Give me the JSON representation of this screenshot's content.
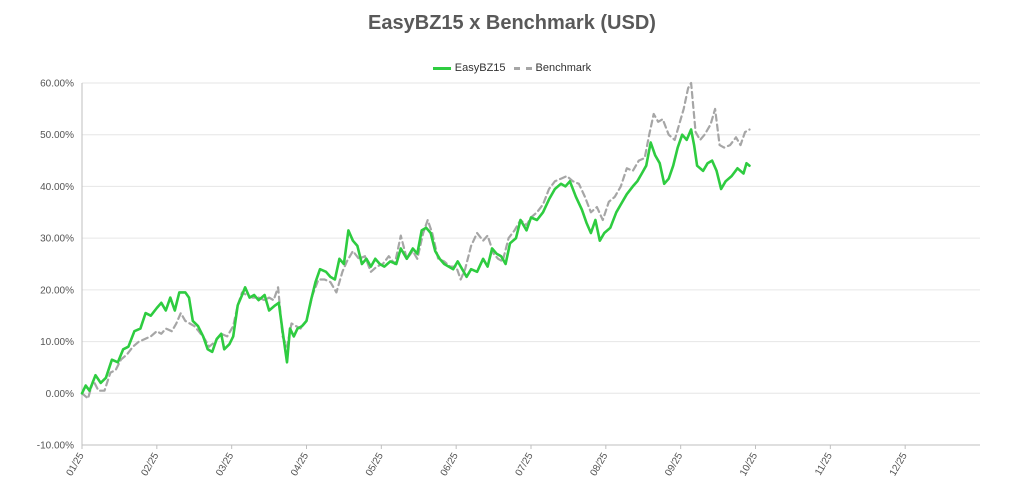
{
  "chart_data": {
    "type": "line",
    "title": "EasyBZ15 x Benchmark (USD)",
    "xlabel": "",
    "ylabel": "",
    "ylim": [
      -10,
      60
    ],
    "yticks": [
      -10,
      0,
      10,
      20,
      30,
      40,
      50,
      60
    ],
    "ytick_labels": [
      "-10.00%",
      "0.00%",
      "10.00%",
      "20.00%",
      "30.00%",
      "40.00%",
      "50.00%",
      "60.00%"
    ],
    "xlim": [
      0,
      12
    ],
    "xtick_positions": [
      0,
      1,
      2,
      3,
      4,
      5,
      6,
      7,
      8,
      9,
      10,
      11
    ],
    "xtick_labels": [
      "01/25",
      "02/25",
      "03/25",
      "04/25",
      "05/25",
      "06/25",
      "07/25",
      "08/25",
      "09/25",
      "10/25",
      "11/25",
      "12/25"
    ],
    "grid": "horizontal",
    "legend_position": "top-center",
    "series": [
      {
        "name": "EasyBZ15",
        "color": "#2ecc40",
        "style": "solid",
        "points": [
          [
            0.0,
            0.0
          ],
          [
            0.05,
            1.5
          ],
          [
            0.1,
            0.5
          ],
          [
            0.18,
            3.5
          ],
          [
            0.25,
            2.0
          ],
          [
            0.32,
            3.0
          ],
          [
            0.4,
            6.5
          ],
          [
            0.48,
            6.0
          ],
          [
            0.55,
            8.5
          ],
          [
            0.62,
            9.0
          ],
          [
            0.7,
            12.0
          ],
          [
            0.78,
            12.5
          ],
          [
            0.85,
            15.5
          ],
          [
            0.92,
            15.0
          ],
          [
            1.0,
            16.5
          ],
          [
            1.06,
            17.5
          ],
          [
            1.12,
            16.0
          ],
          [
            1.18,
            18.5
          ],
          [
            1.24,
            16.0
          ],
          [
            1.3,
            19.5
          ],
          [
            1.38,
            19.5
          ],
          [
            1.43,
            18.5
          ],
          [
            1.48,
            14.0
          ],
          [
            1.55,
            13.0
          ],
          [
            1.62,
            11.0
          ],
          [
            1.68,
            8.5
          ],
          [
            1.74,
            8.0
          ],
          [
            1.8,
            10.5
          ],
          [
            1.86,
            11.5
          ],
          [
            1.9,
            8.5
          ],
          [
            1.97,
            9.5
          ],
          [
            2.02,
            11.0
          ],
          [
            2.08,
            17.0
          ],
          [
            2.14,
            19.0
          ],
          [
            2.18,
            20.5
          ],
          [
            2.24,
            18.5
          ],
          [
            2.3,
            19.0
          ],
          [
            2.36,
            18.0
          ],
          [
            2.44,
            19.0
          ],
          [
            2.5,
            16.0
          ],
          [
            2.58,
            17.0
          ],
          [
            2.63,
            17.5
          ],
          [
            2.68,
            12.0
          ],
          [
            2.74,
            6.0
          ],
          [
            2.78,
            12.5
          ],
          [
            2.83,
            11.0
          ],
          [
            2.88,
            12.5
          ],
          [
            2.94,
            13.0
          ],
          [
            3.0,
            14.0
          ],
          [
            3.06,
            18.0
          ],
          [
            3.12,
            21.5
          ],
          [
            3.18,
            24.0
          ],
          [
            3.26,
            23.5
          ],
          [
            3.32,
            22.5
          ],
          [
            3.38,
            22.0
          ],
          [
            3.44,
            26.0
          ],
          [
            3.5,
            25.0
          ],
          [
            3.56,
            31.5
          ],
          [
            3.62,
            29.5
          ],
          [
            3.68,
            28.5
          ],
          [
            3.74,
            25.0
          ],
          [
            3.8,
            26.0
          ],
          [
            3.86,
            24.5
          ],
          [
            3.92,
            26.0
          ],
          [
            3.98,
            25.0
          ],
          [
            4.04,
            24.5
          ],
          [
            4.12,
            25.5
          ],
          [
            4.2,
            25.0
          ],
          [
            4.26,
            28.0
          ],
          [
            4.34,
            26.0
          ],
          [
            4.42,
            28.0
          ],
          [
            4.48,
            27.0
          ],
          [
            4.54,
            31.5
          ],
          [
            4.6,
            32.0
          ],
          [
            4.66,
            31.0
          ],
          [
            4.72,
            27.5
          ],
          [
            4.78,
            26.0
          ],
          [
            4.84,
            25.0
          ],
          [
            4.9,
            24.5
          ],
          [
            4.96,
            24.0
          ],
          [
            5.02,
            25.5
          ],
          [
            5.08,
            24.0
          ],
          [
            5.14,
            22.5
          ],
          [
            5.2,
            24.0
          ],
          [
            5.28,
            23.5
          ],
          [
            5.36,
            26.0
          ],
          [
            5.42,
            24.5
          ],
          [
            5.48,
            28.0
          ],
          [
            5.54,
            27.0
          ],
          [
            5.6,
            26.5
          ],
          [
            5.66,
            25.0
          ],
          [
            5.72,
            29.0
          ],
          [
            5.8,
            30.0
          ],
          [
            5.86,
            33.5
          ],
          [
            5.94,
            31.5
          ],
          [
            6.0,
            34.0
          ],
          [
            6.08,
            33.5
          ],
          [
            6.16,
            35.0
          ],
          [
            6.24,
            37.5
          ],
          [
            6.32,
            39.5
          ],
          [
            6.4,
            40.5
          ],
          [
            6.46,
            40.0
          ],
          [
            6.52,
            41.0
          ],
          [
            6.6,
            38.0
          ],
          [
            6.68,
            35.5
          ],
          [
            6.74,
            33.0
          ],
          [
            6.8,
            31.0
          ],
          [
            6.86,
            33.5
          ],
          [
            6.92,
            29.5
          ],
          [
            6.98,
            31.0
          ],
          [
            7.06,
            32.0
          ],
          [
            7.14,
            35.0
          ],
          [
            7.2,
            36.5
          ],
          [
            7.28,
            38.5
          ],
          [
            7.36,
            40.0
          ],
          [
            7.42,
            41.0
          ],
          [
            7.48,
            42.5
          ],
          [
            7.54,
            44.0
          ],
          [
            7.6,
            48.5
          ],
          [
            7.66,
            46.0
          ],
          [
            7.72,
            44.5
          ],
          [
            7.78,
            40.5
          ],
          [
            7.84,
            41.5
          ],
          [
            7.9,
            44.0
          ],
          [
            7.96,
            47.5
          ],
          [
            8.02,
            50.0
          ],
          [
            8.08,
            49.0
          ],
          [
            8.14,
            51.0
          ],
          [
            8.18,
            48.0
          ],
          [
            8.22,
            44.0
          ],
          [
            8.3,
            43.0
          ],
          [
            8.36,
            44.5
          ],
          [
            8.42,
            45.0
          ],
          [
            8.48,
            43.0
          ],
          [
            8.54,
            39.5
          ],
          [
            8.6,
            41.0
          ],
          [
            8.68,
            42.0
          ],
          [
            8.76,
            43.5
          ],
          [
            8.84,
            42.5
          ],
          [
            8.88,
            44.5
          ],
          [
            8.92,
            44.0
          ]
        ]
      },
      {
        "name": "Benchmark",
        "color": "#a6a6a6",
        "style": "dashed",
        "points": [
          [
            0.0,
            0.0
          ],
          [
            0.08,
            -1.0
          ],
          [
            0.15,
            2.5
          ],
          [
            0.22,
            0.5
          ],
          [
            0.3,
            0.5
          ],
          [
            0.38,
            4.0
          ],
          [
            0.45,
            4.5
          ],
          [
            0.52,
            6.5
          ],
          [
            0.6,
            7.5
          ],
          [
            0.68,
            9.0
          ],
          [
            0.76,
            10.0
          ],
          [
            0.84,
            10.5
          ],
          [
            0.92,
            11.0
          ],
          [
            1.0,
            12.0
          ],
          [
            1.06,
            11.5
          ],
          [
            1.12,
            12.5
          ],
          [
            1.2,
            12.0
          ],
          [
            1.26,
            13.5
          ],
          [
            1.32,
            15.5
          ],
          [
            1.38,
            14.0
          ],
          [
            1.44,
            13.5
          ],
          [
            1.5,
            13.0
          ],
          [
            1.56,
            12.0
          ],
          [
            1.64,
            10.5
          ],
          [
            1.7,
            9.0
          ],
          [
            1.78,
            10.0
          ],
          [
            1.86,
            11.5
          ],
          [
            1.94,
            11.0
          ],
          [
            2.02,
            13.0
          ],
          [
            2.08,
            17.0
          ],
          [
            2.14,
            19.5
          ],
          [
            2.2,
            19.0
          ],
          [
            2.28,
            18.5
          ],
          [
            2.36,
            18.5
          ],
          [
            2.44,
            18.0
          ],
          [
            2.5,
            18.5
          ],
          [
            2.56,
            18.0
          ],
          [
            2.62,
            20.5
          ],
          [
            2.68,
            11.0
          ],
          [
            2.74,
            9.0
          ],
          [
            2.8,
            13.5
          ],
          [
            2.86,
            13.0
          ],
          [
            2.92,
            12.5
          ],
          [
            3.0,
            14.0
          ],
          [
            3.08,
            19.0
          ],
          [
            3.16,
            22.0
          ],
          [
            3.24,
            22.0
          ],
          [
            3.32,
            21.5
          ],
          [
            3.4,
            19.5
          ],
          [
            3.48,
            23.5
          ],
          [
            3.54,
            25.5
          ],
          [
            3.62,
            27.5
          ],
          [
            3.7,
            26.0
          ],
          [
            3.78,
            26.5
          ],
          [
            3.86,
            23.5
          ],
          [
            3.94,
            24.5
          ],
          [
            4.02,
            25.0
          ],
          [
            4.1,
            26.5
          ],
          [
            4.18,
            25.0
          ],
          [
            4.26,
            30.5
          ],
          [
            4.34,
            26.0
          ],
          [
            4.42,
            27.5
          ],
          [
            4.48,
            26.0
          ],
          [
            4.56,
            31.0
          ],
          [
            4.62,
            33.5
          ],
          [
            4.68,
            31.0
          ],
          [
            4.76,
            26.0
          ],
          [
            4.84,
            25.5
          ],
          [
            4.92,
            24.5
          ],
          [
            5.0,
            24.5
          ],
          [
            5.06,
            22.0
          ],
          [
            5.12,
            24.0
          ],
          [
            5.2,
            28.5
          ],
          [
            5.28,
            31.0
          ],
          [
            5.36,
            29.5
          ],
          [
            5.42,
            30.5
          ],
          [
            5.5,
            27.0
          ],
          [
            5.56,
            26.0
          ],
          [
            5.62,
            25.5
          ],
          [
            5.7,
            30.0
          ],
          [
            5.78,
            31.5
          ],
          [
            5.86,
            33.5
          ],
          [
            5.94,
            32.5
          ],
          [
            6.0,
            34.0
          ],
          [
            6.08,
            35.0
          ],
          [
            6.16,
            36.5
          ],
          [
            6.24,
            39.5
          ],
          [
            6.32,
            41.0
          ],
          [
            6.4,
            41.5
          ],
          [
            6.48,
            42.0
          ],
          [
            6.56,
            41.0
          ],
          [
            6.64,
            40.5
          ],
          [
            6.72,
            38.0
          ],
          [
            6.8,
            35.0
          ],
          [
            6.88,
            36.0
          ],
          [
            6.96,
            33.5
          ],
          [
            7.04,
            37.0
          ],
          [
            7.12,
            38.0
          ],
          [
            7.2,
            40.0
          ],
          [
            7.28,
            43.5
          ],
          [
            7.36,
            43.0
          ],
          [
            7.44,
            45.0
          ],
          [
            7.52,
            45.5
          ],
          [
            7.58,
            50.0
          ],
          [
            7.64,
            54.0
          ],
          [
            7.7,
            52.5
          ],
          [
            7.76,
            53.0
          ],
          [
            7.84,
            50.0
          ],
          [
            7.92,
            49.0
          ],
          [
            7.98,
            52.0
          ],
          [
            8.04,
            55.0
          ],
          [
            8.1,
            59.0
          ],
          [
            8.14,
            60.0
          ],
          [
            8.2,
            50.5
          ],
          [
            8.26,
            49.0
          ],
          [
            8.32,
            50.0
          ],
          [
            8.4,
            52.0
          ],
          [
            8.46,
            55.0
          ],
          [
            8.52,
            48.0
          ],
          [
            8.58,
            47.5
          ],
          [
            8.66,
            48.0
          ],
          [
            8.74,
            49.5
          ],
          [
            8.8,
            48.0
          ],
          [
            8.86,
            50.5
          ],
          [
            8.92,
            51.0
          ]
        ]
      }
    ]
  }
}
